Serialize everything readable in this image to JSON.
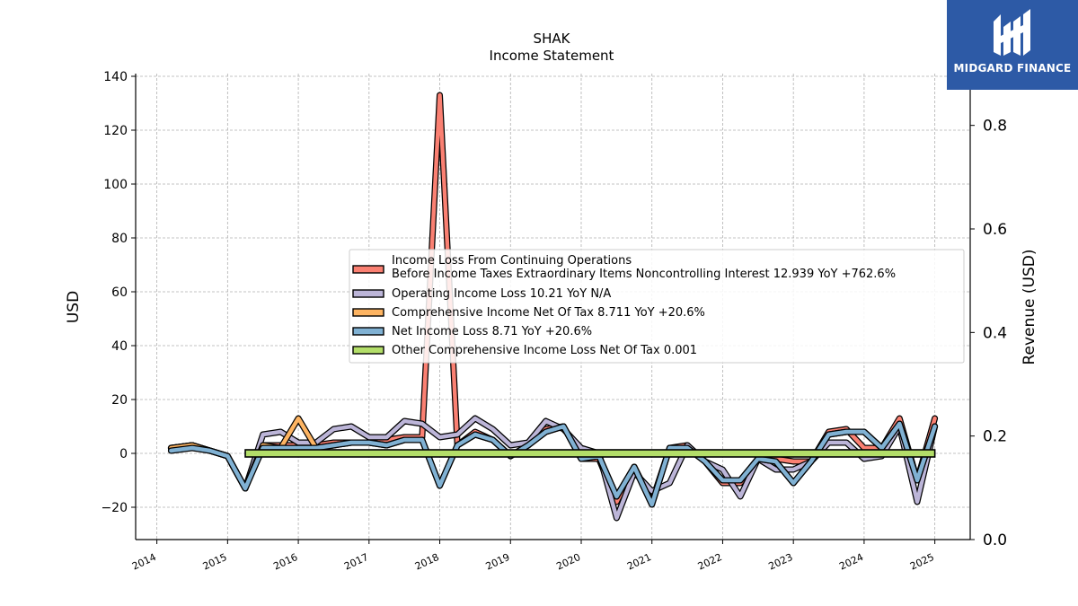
{
  "chart_data": {
    "type": "line",
    "title": "SHAK",
    "subtitle": "Income Statement",
    "ylabel": "USD",
    "y2label": "Revenue (USD)",
    "ylim": [
      -32,
      141
    ],
    "y2lim": [
      0.0,
      0.9
    ],
    "yticks": [
      -20,
      0,
      20,
      40,
      60,
      80,
      100,
      120,
      140
    ],
    "yticklabels": [
      "−20",
      "0",
      "20",
      "40",
      "60",
      "80",
      "100",
      "120",
      "140"
    ],
    "y2ticks": [
      0.0,
      0.2,
      0.4,
      0.6,
      0.8
    ],
    "y2ticklabels": [
      "0.0",
      "0.2",
      "0.4",
      "0.6",
      "0.8"
    ],
    "xlim": [
      2013.7,
      2025.5
    ],
    "xticks": [
      2014,
      2015,
      2016,
      2017,
      2018,
      2019,
      2020,
      2021,
      2022,
      2023,
      2024,
      2025
    ],
    "xticklabels": [
      "2014",
      "2015",
      "2016",
      "2017",
      "2018",
      "2019",
      "2020",
      "2021",
      "2022",
      "2023",
      "2024",
      "2025"
    ],
    "grid": true,
    "legend_position": "center-right",
    "series": [
      {
        "name": "Income Loss From Continuing Operations Before Income Taxes Extraordinary Items Noncontrolling Interest",
        "legend_lines": [
          "Income Loss From Continuing Operations",
          "Before Income Taxes Extraordinary Items Noncontrolling Interest  12.939 YoY +762.6%"
        ],
        "color": "#fa8072",
        "x": [
          2014.2,
          2014.5,
          2014.75,
          2015.0,
          2015.25,
          2015.5,
          2015.75,
          2016.0,
          2016.25,
          2016.5,
          2016.75,
          2017.0,
          2017.25,
          2017.5,
          2017.75,
          2018.0,
          2018.25,
          2018.5,
          2018.75,
          2019.0,
          2019.25,
          2019.5,
          2019.75,
          2020.0,
          2020.25,
          2020.5,
          2020.75,
          2021.0,
          2021.25,
          2021.5,
          2021.75,
          2022.0,
          2022.25,
          2022.5,
          2022.75,
          2023.0,
          2023.25,
          2023.5,
          2023.75,
          2024.0,
          2024.25,
          2024.5,
          2024.75,
          2025.0
        ],
        "values": [
          2,
          3,
          1,
          -1,
          -13,
          3,
          3,
          3,
          3,
          4,
          4,
          4,
          5,
          6,
          6,
          133,
          3,
          8,
          5,
          -1,
          3,
          9,
          10,
          -2,
          -2,
          -18,
          -5,
          -18,
          2,
          3,
          -3,
          -11,
          -11,
          -2,
          -2,
          -3,
          -3,
          8,
          9,
          2,
          2,
          13,
          -10,
          13
        ]
      },
      {
        "name": "Operating Income Loss",
        "legend_lines": [
          "Operating Income Loss  10.21 YoY N/A"
        ],
        "color": "#bcb5d8",
        "x": [
          2014.2,
          2014.5,
          2014.75,
          2015.0,
          2015.25,
          2015.5,
          2015.75,
          2016.0,
          2016.25,
          2016.5,
          2016.75,
          2017.0,
          2017.25,
          2017.5,
          2017.75,
          2018.0,
          2018.25,
          2018.5,
          2018.75,
          2019.0,
          2019.25,
          2019.5,
          2019.75,
          2020.0,
          2020.25,
          2020.5,
          2020.75,
          2021.0,
          2021.25,
          2021.5,
          2021.75,
          2022.0,
          2022.25,
          2022.5,
          2022.75,
          2023.0,
          2023.25,
          2023.5,
          2023.75,
          2024.0,
          2024.25,
          2024.5,
          2024.75,
          2025.0
        ],
        "values": [
          2,
          3,
          1,
          -1,
          -13,
          7,
          8,
          4,
          4,
          9,
          10,
          6,
          6,
          12,
          11,
          6,
          7,
          13,
          9,
          3,
          4,
          12,
          9,
          2,
          0,
          -24,
          -7,
          -14,
          -11,
          3,
          -3,
          -6,
          -16,
          -2,
          -6,
          -6,
          -3,
          4,
          4,
          -2,
          -1,
          10,
          -18,
          10
        ]
      },
      {
        "name": "Comprehensive Income Net Of Tax",
        "legend_lines": [
          "Comprehensive Income Net Of Tax  8.711 YoY +20.6%"
        ],
        "color": "#fdb462",
        "x": [
          2014.2,
          2014.5,
          2014.75,
          2015.0,
          2015.25,
          2015.5,
          2015.75,
          2016.0,
          2016.25,
          2016.5,
          2016.75,
          2017.0,
          2017.25,
          2017.5,
          2017.75,
          2018.0,
          2018.25,
          2018.5,
          2018.75,
          2019.0,
          2019.25,
          2019.5,
          2019.75,
          2020.0,
          2020.25,
          2020.5,
          2020.75,
          2021.0,
          2021.25,
          2021.5,
          2021.75,
          2022.0,
          2022.25,
          2022.5,
          2022.75,
          2023.0,
          2023.25,
          2023.5,
          2023.75,
          2024.0,
          2024.25,
          2024.5,
          2024.75,
          2025.0
        ],
        "values": [
          2,
          3,
          1,
          -1,
          -13,
          3,
          2,
          13,
          2,
          3,
          4,
          4,
          3,
          5,
          5,
          -12,
          3,
          7,
          5,
          -1,
          3,
          8,
          10,
          -2,
          -1,
          -16,
          -5,
          -19,
          2,
          2,
          -3,
          -10,
          -10,
          -2,
          -3,
          -11,
          -3,
          7,
          8,
          8,
          2,
          11,
          -10,
          10
        ]
      },
      {
        "name": "Net Income Loss",
        "legend_lines": [
          "Net Income Loss  8.71 YoY +20.6%"
        ],
        "color": "#80b1d3",
        "x": [
          2014.2,
          2014.5,
          2014.75,
          2015.0,
          2015.25,
          2015.5,
          2015.75,
          2016.0,
          2016.25,
          2016.5,
          2016.75,
          2017.0,
          2017.25,
          2017.5,
          2017.75,
          2018.0,
          2018.25,
          2018.5,
          2018.75,
          2019.0,
          2019.25,
          2019.5,
          2019.75,
          2020.0,
          2020.25,
          2020.5,
          2020.75,
          2021.0,
          2021.25,
          2021.5,
          2021.75,
          2022.0,
          2022.25,
          2022.5,
          2022.75,
          2023.0,
          2023.25,
          2023.5,
          2023.75,
          2024.0,
          2024.25,
          2024.5,
          2024.75,
          2025.0
        ],
        "values": [
          1,
          2,
          1,
          -1,
          -13,
          2,
          2,
          2,
          2,
          3,
          4,
          4,
          3,
          5,
          5,
          -12,
          3,
          7,
          5,
          -1,
          3,
          8,
          10,
          -2,
          -1,
          -16,
          -5,
          -19,
          2,
          2,
          -3,
          -10,
          -10,
          -2,
          -3,
          -11,
          -3,
          7,
          8,
          8,
          2,
          11,
          -10,
          10
        ]
      },
      {
        "name": "Other Comprehensive Income Loss Net Of Tax",
        "legend_lines": [
          "Other Comprehensive Income Loss Net Of Tax  0.001"
        ],
        "color": "#b3de69",
        "x": [
          2015.25,
          2025.0
        ],
        "values": [
          0,
          0
        ]
      }
    ]
  },
  "logo": {
    "brand": "MIDGARD FINANCE"
  }
}
